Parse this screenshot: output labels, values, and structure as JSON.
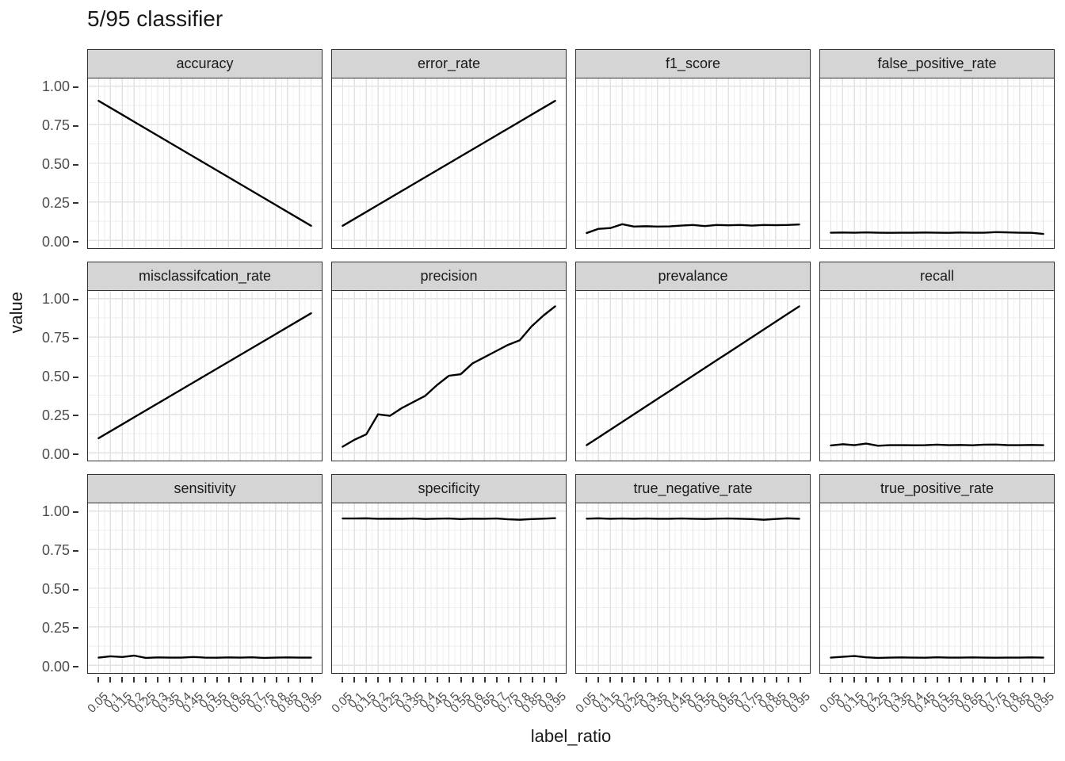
{
  "title": "5/95 classifier",
  "axes": {
    "x_title": "label_ratio",
    "y_title": "value",
    "y_tick_labels": [
      "1.00",
      "0.75",
      "0.50",
      "0.25",
      "0.00"
    ],
    "x_tick_labels": [
      "0.05",
      "0.1",
      "0.15",
      "0.2",
      "0.25",
      "0.3",
      "0.35",
      "0.4",
      "0.45",
      "0.5",
      "0.55",
      "0.6",
      "0.65",
      "0.7",
      "0.75",
      "0.8",
      "0.85",
      "0.9",
      "0.95"
    ]
  },
  "colors": {
    "line": "#000000",
    "strip_fill": "#D5D5D5",
    "panel_border": "#333333",
    "grid_major": "#E3E3E3",
    "grid_minor": "#EFEFEF",
    "axis_text": "#4D4D4D",
    "title_text": "#1a1a1a"
  },
  "chart_data": {
    "type": "line",
    "title": "5/95 classifier",
    "xlabel": "label_ratio",
    "ylabel": "value",
    "ylim": [
      0,
      1
    ],
    "y_ticks": [
      1.0,
      0.75,
      0.5,
      0.25,
      0.0
    ],
    "grid": true,
    "legend": false,
    "facet_layout": {
      "rows": 3,
      "cols": 4
    },
    "x": [
      0.05,
      0.1,
      0.15,
      0.2,
      0.25,
      0.3,
      0.35,
      0.4,
      0.45,
      0.5,
      0.55,
      0.6,
      0.65,
      0.7,
      0.75,
      0.8,
      0.85,
      0.9,
      0.95
    ],
    "x_tick_labels": [
      "0.05",
      "0.1",
      "0.15",
      "0.2",
      "0.25",
      "0.3",
      "0.35",
      "0.4",
      "0.45",
      "0.5",
      "0.55",
      "0.6",
      "0.65",
      "0.7",
      "0.75",
      "0.8",
      "0.85",
      "0.9",
      "0.95"
    ],
    "facets": [
      {
        "label": "accuracy",
        "values": [
          0.905,
          0.86,
          0.815,
          0.77,
          0.725,
          0.68,
          0.635,
          0.59,
          0.545,
          0.5,
          0.455,
          0.41,
          0.365,
          0.32,
          0.275,
          0.23,
          0.185,
          0.14,
          0.095
        ]
      },
      {
        "label": "error_rate",
        "values": [
          0.095,
          0.14,
          0.185,
          0.23,
          0.275,
          0.32,
          0.365,
          0.41,
          0.455,
          0.5,
          0.545,
          0.59,
          0.635,
          0.68,
          0.725,
          0.77,
          0.815,
          0.86,
          0.905
        ]
      },
      {
        "label": "f1_score",
        "values": [
          0.048,
          0.075,
          0.08,
          0.105,
          0.09,
          0.092,
          0.09,
          0.091,
          0.096,
          0.1,
          0.093,
          0.1,
          0.098,
          0.1,
          0.096,
          0.1,
          0.099,
          0.1,
          0.103
        ]
      },
      {
        "label": "false_positive_rate",
        "values": [
          0.05,
          0.051,
          0.05,
          0.052,
          0.05,
          0.049,
          0.05,
          0.05,
          0.051,
          0.05,
          0.049,
          0.051,
          0.05,
          0.05,
          0.054,
          0.052,
          0.05,
          0.049,
          0.042
        ]
      },
      {
        "label": "misclassifcation_rate",
        "values": [
          0.095,
          0.14,
          0.185,
          0.23,
          0.275,
          0.32,
          0.365,
          0.41,
          0.455,
          0.5,
          0.545,
          0.59,
          0.635,
          0.68,
          0.725,
          0.77,
          0.815,
          0.86,
          0.905
        ]
      },
      {
        "label": "precision",
        "values": [
          0.04,
          0.085,
          0.12,
          0.25,
          0.24,
          0.29,
          0.33,
          0.37,
          0.44,
          0.5,
          0.51,
          0.58,
          0.62,
          0.66,
          0.7,
          0.73,
          0.82,
          0.89,
          0.95
        ]
      },
      {
        "label": "prevalance",
        "values": [
          0.05,
          0.1,
          0.15,
          0.2,
          0.25,
          0.3,
          0.35,
          0.4,
          0.45,
          0.5,
          0.55,
          0.6,
          0.65,
          0.7,
          0.75,
          0.8,
          0.85,
          0.9,
          0.95
        ]
      },
      {
        "label": "recall",
        "values": [
          0.048,
          0.056,
          0.05,
          0.06,
          0.046,
          0.05,
          0.05,
          0.049,
          0.05,
          0.053,
          0.05,
          0.051,
          0.049,
          0.053,
          0.054,
          0.05,
          0.05,
          0.051,
          0.05
        ]
      },
      {
        "label": "sensitivity",
        "values": [
          0.05,
          0.058,
          0.054,
          0.063,
          0.048,
          0.051,
          0.05,
          0.05,
          0.054,
          0.05,
          0.049,
          0.051,
          0.05,
          0.052,
          0.048,
          0.05,
          0.051,
          0.05,
          0.05
        ]
      },
      {
        "label": "specificity",
        "values": [
          0.952,
          0.952,
          0.953,
          0.95,
          0.951,
          0.95,
          0.952,
          0.949,
          0.951,
          0.952,
          0.948,
          0.951,
          0.95,
          0.952,
          0.947,
          0.944,
          0.948,
          0.951,
          0.954
        ]
      },
      {
        "label": "true_negative_rate",
        "values": [
          0.951,
          0.953,
          0.95,
          0.952,
          0.95,
          0.952,
          0.95,
          0.95,
          0.952,
          0.95,
          0.949,
          0.951,
          0.952,
          0.95,
          0.948,
          0.944,
          0.949,
          0.953,
          0.95
        ]
      },
      {
        "label": "true_positive_rate",
        "values": [
          0.05,
          0.055,
          0.06,
          0.052,
          0.048,
          0.05,
          0.051,
          0.05,
          0.049,
          0.052,
          0.05,
          0.05,
          0.051,
          0.05,
          0.049,
          0.05,
          0.05,
          0.051,
          0.05
        ]
      }
    ]
  }
}
